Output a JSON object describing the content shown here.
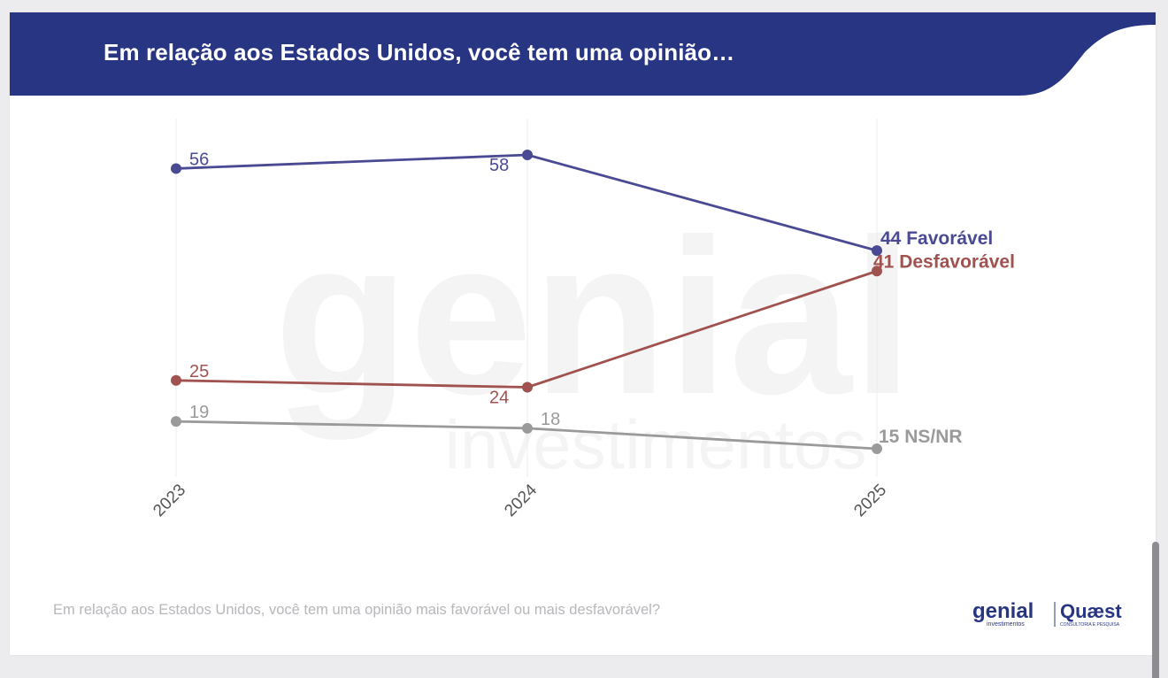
{
  "header": {
    "title": "Em relação aos Estados Unidos, você tem uma opinião…",
    "color": "#283583"
  },
  "chart_data": {
    "type": "line",
    "title": "Em relação aos Estados Unidos, você tem uma opinião…",
    "x": [
      "2023",
      "2024",
      "2025"
    ],
    "ylim": [
      0,
      70
    ],
    "grid": "vertical",
    "series": [
      {
        "name": "Favorável",
        "values": [
          56,
          58,
          44
        ],
        "color": "#4a4a94"
      },
      {
        "name": "Desfavorável",
        "values": [
          25,
          24,
          41
        ],
        "color": "#a0524f"
      },
      {
        "name": "NS/NR",
        "values": [
          19,
          18,
          15
        ],
        "color": "#9a9a9a"
      }
    ]
  },
  "footer": {
    "question": "Em relação aos Estados Unidos, você tem uma opinião mais favorável ou mais desfavorável?"
  },
  "logos": {
    "genial": "genial",
    "genial_sub": "investimentos",
    "quaest": "Quæst",
    "quaest_sub": "CONSULTORIA E PESQUISA"
  },
  "watermark": {
    "word": "genial",
    "sub": "investimentos"
  }
}
